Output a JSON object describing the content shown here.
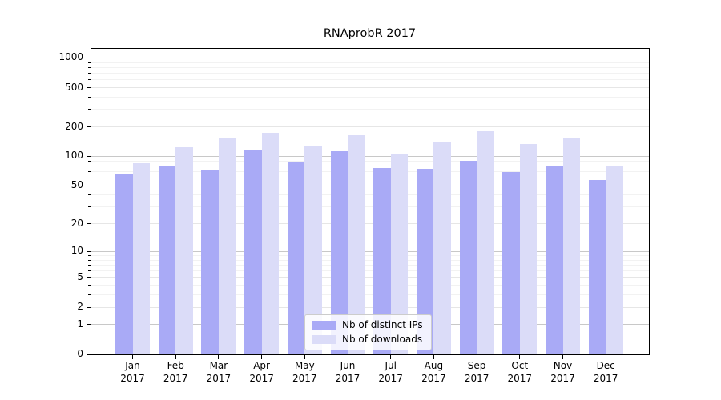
{
  "chart_data": {
    "type": "bar",
    "title": "RNAprobR 2017",
    "categories": [
      "Jan",
      "Feb",
      "Mar",
      "Apr",
      "May",
      "Jun",
      "Jul",
      "Aug",
      "Sep",
      "Oct",
      "Nov",
      "Dec"
    ],
    "year": "2017",
    "series": [
      {
        "name": "Nb of distinct IPs",
        "color": "#a9aaf6",
        "values": [
          65,
          81,
          73,
          115,
          89,
          114,
          76,
          74,
          90,
          69,
          79,
          57
        ]
      },
      {
        "name": "Nb of downloads",
        "color": "#dbdcf8",
        "values": [
          85,
          124,
          156,
          173,
          126,
          164,
          105,
          138,
          180,
          135,
          154,
          79
        ]
      }
    ],
    "y_axis": {
      "scale": "log10(value+1)",
      "ticks": [
        0,
        1,
        2,
        5,
        10,
        20,
        50,
        100,
        200,
        500,
        1000
      ],
      "minor_gridlines": [
        3,
        4,
        6,
        7,
        8,
        9,
        30,
        40,
        60,
        70,
        80,
        90,
        300,
        400,
        600,
        700,
        800,
        900
      ],
      "range_top": 1250
    },
    "xlabel": "",
    "ylabel": "",
    "grid": true,
    "legend_position": "lower-center"
  },
  "colors": {
    "spine": "#000000",
    "grid_major": "#c8c8c8",
    "grid_mid": "#e6e6e6",
    "grid_minor": "#f2f2f2",
    "legend_border": "#cccccc",
    "background": "#ffffff"
  }
}
